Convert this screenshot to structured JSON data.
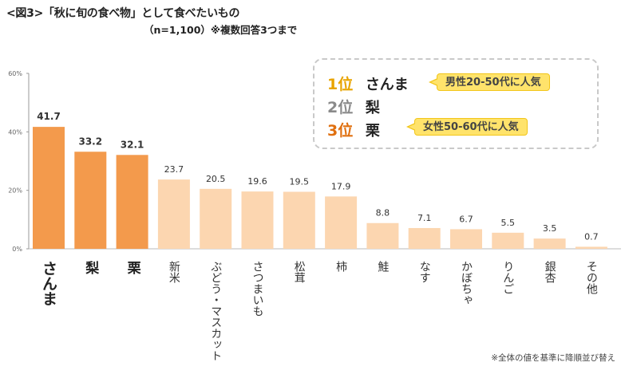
{
  "header": {
    "title": "<図3>「秋に旬の食べ物」として食べたいもの",
    "subtitle": "（n=1,100）※複数回答3つまで"
  },
  "ranking": {
    "items": [
      {
        "rank": "1位",
        "name": "さんま",
        "rank_color": "#e8a400"
      },
      {
        "rank": "2位",
        "name": "梨",
        "rank_color": "#8a8a8a"
      },
      {
        "rank": "3位",
        "name": "栗",
        "rank_color": "#e07010"
      }
    ],
    "callout_male": "男性20-50代に人気",
    "callout_female": "女性50-60代に人気"
  },
  "footnote": "※全体の値を基準に降順並び替え",
  "colors": {
    "top3_bar": "#f39a4c",
    "other_bar": "#fcd6b0",
    "callout_fill": "#ffe36b"
  },
  "chart_data": {
    "type": "bar",
    "categories": [
      "さんま",
      "梨",
      "栗",
      "新米",
      "ぶどう・マスカット",
      "さつまいも",
      "松茸",
      "柿",
      "鮭",
      "なす",
      "かぼちゃ",
      "りんご",
      "銀杏",
      "その他"
    ],
    "values": [
      41.7,
      33.2,
      32.1,
      23.7,
      20.5,
      19.6,
      19.5,
      17.9,
      8.8,
      7.1,
      6.7,
      5.5,
      3.5,
      0.7
    ],
    "value_labels": [
      "41.7",
      "33.2",
      "32.1",
      "23.7",
      "20.5",
      "19.6",
      "19.5",
      "17.9",
      "8.8",
      "7.1",
      "6.7",
      "5.5",
      "3.5",
      "0.7"
    ],
    "highlighted_count": 3,
    "yticks": [
      "0%",
      "20%",
      "40%",
      "60%"
    ],
    "ytick_values": [
      0,
      20,
      40,
      60
    ],
    "ylim": [
      0,
      60
    ],
    "grid": false
  }
}
